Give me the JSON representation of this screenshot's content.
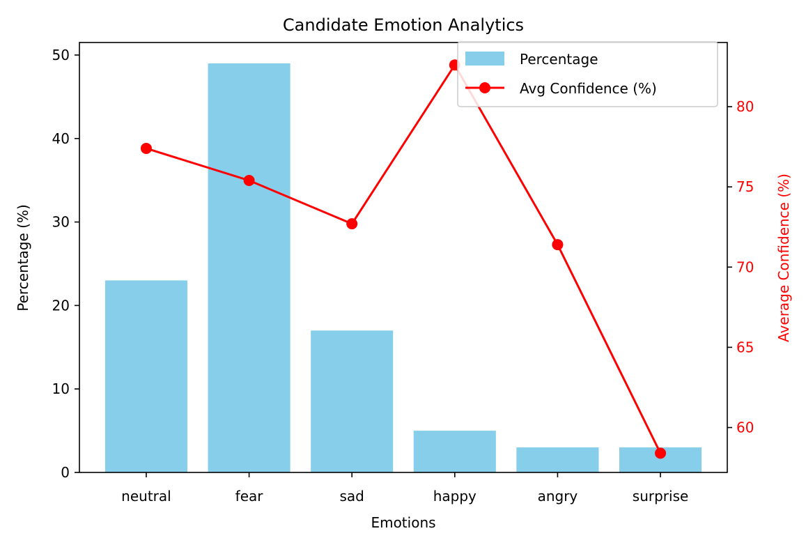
{
  "chart_data": {
    "type": "bar+line",
    "title": "Candidate Emotion Analytics",
    "xlabel": "Emotions",
    "ylabel": "Percentage (%)",
    "y2label": "Average Confidence (%)",
    "categories": [
      "neutral",
      "fear",
      "sad",
      "happy",
      "angry",
      "surprise"
    ],
    "series": [
      {
        "name": "Percentage",
        "kind": "bar",
        "axis": "left",
        "color": "#87ceeb",
        "values": [
          23,
          49,
          17,
          5,
          3,
          3
        ]
      },
      {
        "name": "Avg Confidence (%)",
        "kind": "line",
        "axis": "right",
        "color": "#ff0000",
        "marker": "circle",
        "values": [
          77.4,
          75.4,
          72.7,
          82.6,
          71.4,
          58.4
        ]
      }
    ],
    "ylim": [
      0,
      51.5
    ],
    "y2lim": [
      57.2,
      84
    ],
    "yticks": [
      0,
      10,
      20,
      30,
      40,
      50
    ],
    "y2ticks": [
      60,
      65,
      70,
      75,
      80
    ],
    "legend": "top-right",
    "grid": false,
    "y2_color": "#ff0000"
  }
}
